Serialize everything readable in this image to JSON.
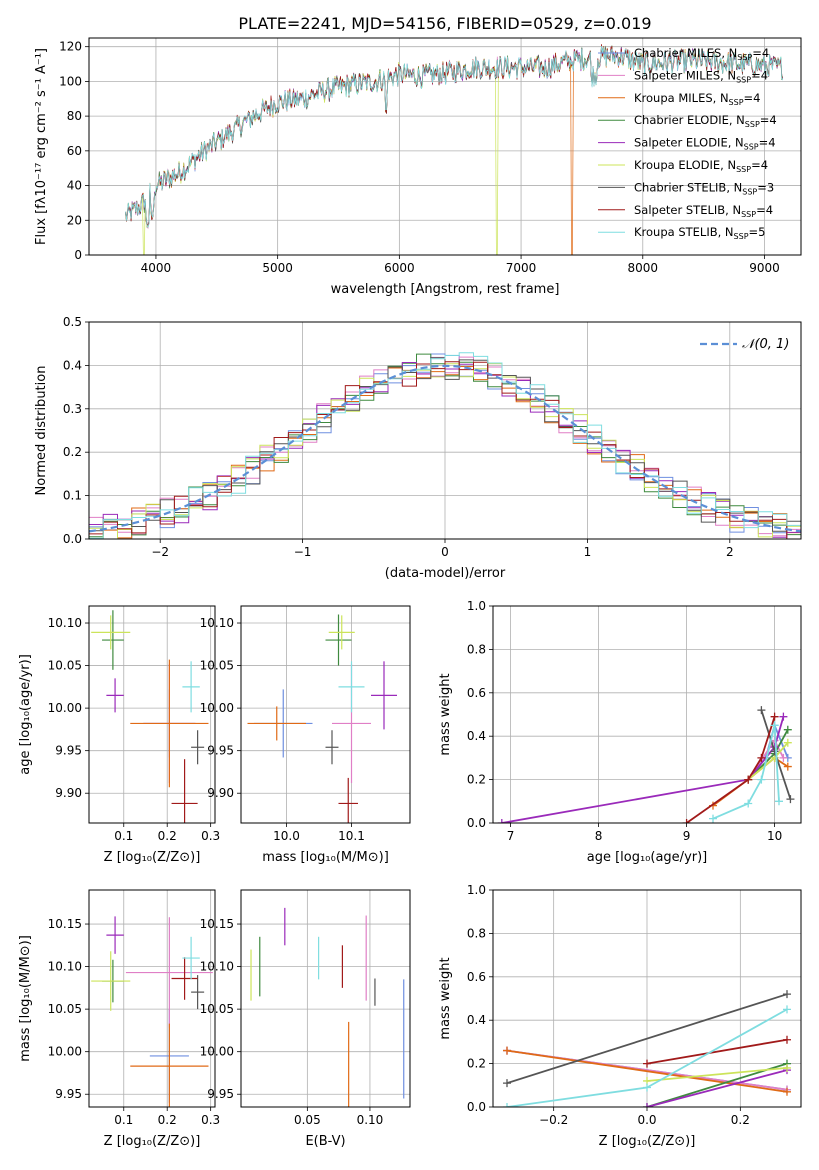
{
  "title": "PLATE=2241, MJD=54156, FIBERID=0529, z=0.019",
  "colors": {
    "Chabrier MILES": "#6f8fe0",
    "Salpeter MILES": "#e07fc6",
    "Kroupa MILES": "#e06a16",
    "Chabrier ELODIE": "#3f8a3f",
    "Salpeter ELODIE": "#9a2aba",
    "Kroupa ELODIE": "#cce45a",
    "Chabrier STELIB": "#555555",
    "Salpeter STELIB": "#a11a1a",
    "Kroupa STELIB": "#7fdde0"
  },
  "legend_spectrum": [
    {
      "model": "Chabrier MILES",
      "label": "Chabrier MILES, N",
      "sub": "SSP",
      "tail": "=4"
    },
    {
      "model": "Salpeter MILES",
      "label": "Salpeter MILES, N",
      "sub": "SSP",
      "tail": "=4"
    },
    {
      "model": "Kroupa MILES",
      "label": "Kroupa MILES, N",
      "sub": "SSP",
      "tail": "=4"
    },
    {
      "model": "Chabrier ELODIE",
      "label": "Chabrier ELODIE, N",
      "sub": "SSP",
      "tail": "=4"
    },
    {
      "model": "Salpeter ELODIE",
      "label": "Salpeter ELODIE, N",
      "sub": "SSP",
      "tail": "=4"
    },
    {
      "model": "Kroupa ELODIE",
      "label": "Kroupa ELODIE, N",
      "sub": "SSP",
      "tail": "=4"
    },
    {
      "model": "Chabrier STELIB",
      "label": "Chabrier STELIB, N",
      "sub": "SSP",
      "tail": "=3"
    },
    {
      "model": "Salpeter STELIB",
      "label": "Salpeter STELIB, N",
      "sub": "SSP",
      "tail": "=4"
    },
    {
      "model": "Kroupa STELIB",
      "label": "Kroupa STELIB, N",
      "sub": "SSP",
      "tail": "=5"
    }
  ],
  "chart_data": [
    {
      "id": "spectrum",
      "type": "line",
      "xlabel": "wavelength [Angstrom, rest frame]",
      "ylabel": "Flux [fλ10⁻¹⁷ erg cm⁻² s⁻¹ A⁻¹]",
      "xlim": [
        3450,
        9300
      ],
      "ylim": [
        0,
        125
      ],
      "xticks": [
        4000,
        5000,
        6000,
        7000,
        8000,
        9000
      ],
      "yticks": [
        0,
        20,
        40,
        60,
        80,
        100,
        120
      ],
      "continuum": {
        "wavelength": [
          3750,
          3900,
          4000,
          4200,
          4400,
          4600,
          4800,
          5000,
          5200,
          5400,
          5600,
          5800,
          6000,
          6200,
          6400,
          6600,
          6800,
          7000,
          7200,
          7400,
          7600,
          7800,
          8000,
          8200,
          8400,
          8600,
          8800,
          9000,
          9150
        ],
        "flux": [
          22,
          30,
          40,
          48,
          60,
          70,
          80,
          88,
          90,
          95,
          98,
          100,
          104,
          103,
          105,
          108,
          108,
          108,
          108,
          112,
          114,
          115,
          110,
          111,
          112,
          111,
          110,
          109,
          108
        ]
      },
      "drops": [
        {
          "model": "Kroupa ELODIE",
          "wavelength": 3900
        },
        {
          "model": "Kroupa ELODIE",
          "wavelength": 6800
        },
        {
          "model": "Kroupa MILES",
          "wavelength": 7420
        }
      ]
    },
    {
      "id": "residuals",
      "type": "histogram",
      "xlabel": "(data-model)/error",
      "ylabel": "Normed distribution",
      "xlim": [
        -2.5,
        2.5
      ],
      "ylim": [
        0,
        0.5
      ],
      "xticks": [
        -2,
        -1,
        0,
        1,
        2
      ],
      "yticks": [
        0.0,
        0.1,
        0.2,
        0.3,
        0.4,
        0.5
      ],
      "reference": {
        "label": "𝒩(0, 1)",
        "mean": 0,
        "sigma": 1
      },
      "bin_width": 0.1
    },
    {
      "id": "age-vs-Z",
      "type": "errorbar",
      "xlabel": "Z [log₁₀(Z/Z⊙)]",
      "ylabel": "age  [log₁₀(age/yr)]",
      "xlim": [
        0.02,
        0.31
      ],
      "ylim": [
        9.865,
        10.12
      ],
      "xticks": [
        0.1,
        0.2,
        0.3
      ],
      "yticks": [
        9.9,
        9.95,
        10.0,
        10.05,
        10.1
      ],
      "points": [
        {
          "model": "Chabrier MILES",
          "x": 0.205,
          "y": 9.982,
          "xerr": 0.06,
          "yerr": 0.04
        },
        {
          "model": "Salpeter MILES",
          "x": 0.205,
          "y": 9.982,
          "xerr": 0.06,
          "yerr": 0.07
        },
        {
          "model": "Kroupa MILES",
          "x": 0.205,
          "y": 9.982,
          "xerr": 0.09,
          "yerr": 0.075
        },
        {
          "model": "Chabrier ELODIE",
          "x": 0.075,
          "y": 10.08,
          "xerr": 0.025,
          "yerr": 0.035
        },
        {
          "model": "Salpeter ELODIE",
          "x": 0.08,
          "y": 10.015,
          "xerr": 0.02,
          "yerr": 0.02
        },
        {
          "model": "Kroupa ELODIE",
          "x": 0.07,
          "y": 10.089,
          "xerr": 0.045,
          "yerr": 0.02
        },
        {
          "model": "Chabrier STELIB",
          "x": 0.27,
          "y": 9.954,
          "xerr": 0.015,
          "yerr": 0.02
        },
        {
          "model": "Salpeter STELIB",
          "x": 0.24,
          "y": 9.888,
          "xerr": 0.03,
          "yerr": 0.052
        },
        {
          "model": "Kroupa STELIB",
          "x": 0.255,
          "y": 10.025,
          "xerr": 0.02,
          "yerr": 0.03
        }
      ]
    },
    {
      "id": "age-vs-mass",
      "type": "errorbar",
      "xlabel": "mass [log₁₀(M/M⊙)]",
      "ylabel": "",
      "xlim": [
        9.93,
        10.19
      ],
      "ylim": [
        9.865,
        10.12
      ],
      "xticks": [
        10.0,
        10.1
      ],
      "yticks": [
        9.9,
        9.95,
        10.0,
        10.05,
        10.1
      ],
      "points": [
        {
          "model": "Chabrier MILES",
          "x": 9.995,
          "y": 9.982,
          "xerr": 0.045,
          "yerr": 0.04
        },
        {
          "model": "Salpeter MILES",
          "x": 10.1,
          "y": 9.982,
          "xerr": 0.03,
          "yerr": 0.07
        },
        {
          "model": "Kroupa MILES",
          "x": 9.985,
          "y": 9.982,
          "xerr": 0.045,
          "yerr": 0.02
        },
        {
          "model": "Chabrier ELODIE",
          "x": 10.08,
          "y": 10.08,
          "xerr": 0.02,
          "yerr": 0.03
        },
        {
          "model": "Salpeter ELODIE",
          "x": 10.15,
          "y": 10.015,
          "xerr": 0.02,
          "yerr": 0.04
        },
        {
          "model": "Kroupa ELODIE",
          "x": 10.085,
          "y": 10.089,
          "xerr": 0.02,
          "yerr": 0.02
        },
        {
          "model": "Chabrier STELIB",
          "x": 10.07,
          "y": 9.954,
          "xerr": 0.01,
          "yerr": 0.02
        },
        {
          "model": "Salpeter STELIB",
          "x": 10.095,
          "y": 9.888,
          "xerr": 0.015,
          "yerr": 0.03
        },
        {
          "model": "Kroupa STELIB",
          "x": 10.1,
          "y": 10.025,
          "xerr": 0.02,
          "yerr": 0.03
        }
      ]
    },
    {
      "id": "weight-vs-age",
      "type": "line",
      "xlabel": "age  [log₁₀(age/yr)]",
      "ylabel": "mass weight",
      "xlim": [
        6.8,
        10.3
      ],
      "ylim": [
        0,
        1.0
      ],
      "xticks": [
        7,
        8,
        9,
        10
      ],
      "yticks": [
        0.0,
        0.2,
        0.4,
        0.6,
        0.8,
        1.0
      ],
      "series": [
        {
          "model": "Chabrier MILES",
          "x": [
            9.7,
            9.9,
            10.0,
            10.15
          ],
          "y": [
            0.2,
            0.3,
            0.45,
            0.3
          ]
        },
        {
          "model": "Salpeter MILES",
          "x": [
            9.7,
            10.0,
            10.1
          ],
          "y": [
            0.2,
            0.38,
            0.3
          ]
        },
        {
          "model": "Kroupa MILES",
          "x": [
            9.3,
            9.7,
            10.0,
            10.15
          ],
          "y": [
            0.08,
            0.2,
            0.3,
            0.26
          ]
        },
        {
          "model": "Chabrier ELODIE",
          "x": [
            9.7,
            10.0,
            10.15
          ],
          "y": [
            0.2,
            0.32,
            0.43
          ]
        },
        {
          "model": "Salpeter ELODIE",
          "x": [
            6.9,
            9.7,
            10.0,
            10.1
          ],
          "y": [
            0.0,
            0.2,
            0.35,
            0.49
          ]
        },
        {
          "model": "Kroupa ELODIE",
          "x": [
            9.7,
            10.0,
            10.15
          ],
          "y": [
            0.2,
            0.3,
            0.37
          ]
        },
        {
          "model": "Chabrier STELIB",
          "x": [
            9.85,
            10.0,
            10.18
          ],
          "y": [
            0.52,
            0.33,
            0.11
          ]
        },
        {
          "model": "Salpeter STELIB",
          "x": [
            9.0,
            9.7,
            9.85,
            10.0
          ],
          "y": [
            0.0,
            0.2,
            0.3,
            0.49
          ]
        },
        {
          "model": "Kroupa STELIB",
          "x": [
            9.3,
            9.7,
            9.85,
            10.0,
            10.05
          ],
          "y": [
            0.02,
            0.09,
            0.2,
            0.45,
            0.1
          ]
        }
      ]
    },
    {
      "id": "mass-vs-Z",
      "type": "errorbar",
      "xlabel": "Z [log₁₀(Z/Z⊙)]",
      "ylabel": "mass [log₁₀(M/M⊙)]",
      "xlim": [
        0.02,
        0.31
      ],
      "ylim": [
        9.935,
        10.19
      ],
      "xticks": [
        0.1,
        0.2,
        0.3
      ],
      "yticks": [
        9.95,
        10.0,
        10.05,
        10.1,
        10.15
      ],
      "points": [
        {
          "model": "Chabrier MILES",
          "x": 0.205,
          "y": 9.995,
          "xerr": 0.045,
          "yerr": 0.055
        },
        {
          "model": "Salpeter MILES",
          "x": 0.205,
          "y": 10.093,
          "xerr": 0.1,
          "yerr": 0.065
        },
        {
          "model": "Kroupa MILES",
          "x": 0.205,
          "y": 9.983,
          "xerr": 0.09,
          "yerr": 0.05
        },
        {
          "model": "Chabrier ELODIE",
          "x": 0.075,
          "y": 10.083,
          "xerr": 0.025,
          "yerr": 0.025
        },
        {
          "model": "Salpeter ELODIE",
          "x": 0.08,
          "y": 10.137,
          "xerr": 0.02,
          "yerr": 0.022
        },
        {
          "model": "Kroupa ELODIE",
          "x": 0.07,
          "y": 10.083,
          "xerr": 0.045,
          "yerr": 0.035
        },
        {
          "model": "Chabrier STELIB",
          "x": 0.27,
          "y": 10.07,
          "xerr": 0.015,
          "yerr": 0.02
        },
        {
          "model": "Salpeter STELIB",
          "x": 0.24,
          "y": 10.086,
          "xerr": 0.03,
          "yerr": 0.025
        },
        {
          "model": "Kroupa STELIB",
          "x": 0.255,
          "y": 10.11,
          "xerr": 0.02,
          "yerr": 0.025
        }
      ]
    },
    {
      "id": "mass-vs-EBV",
      "type": "errorbar",
      "xlabel": "E(B-V)",
      "ylabel": "",
      "xlim": [
        -0.003,
        0.132
      ],
      "ylim": [
        9.935,
        10.19
      ],
      "xticks": [
        0.05,
        0.1
      ],
      "yticks": [
        9.95,
        10.0,
        10.05,
        10.1,
        10.15
      ],
      "points": [
        {
          "model": "Chabrier MILES",
          "x": 0.127,
          "y": 10.015,
          "xerr": 0,
          "yerr": 0.07
        },
        {
          "model": "Salpeter MILES",
          "x": 0.097,
          "y": 10.11,
          "xerr": 0,
          "yerr": 0.05
        },
        {
          "model": "Kroupa MILES",
          "x": 0.083,
          "y": 9.985,
          "xerr": 0,
          "yerr": 0.05
        },
        {
          "model": "Chabrier ELODIE",
          "x": 0.012,
          "y": 10.1,
          "xerr": 0,
          "yerr": 0.035
        },
        {
          "model": "Salpeter ELODIE",
          "x": 0.032,
          "y": 10.147,
          "xerr": 0,
          "yerr": 0.022
        },
        {
          "model": "Kroupa ELODIE",
          "x": 0.005,
          "y": 10.09,
          "xerr": 0,
          "yerr": 0.03
        },
        {
          "model": "Chabrier STELIB",
          "x": 0.104,
          "y": 10.07,
          "xerr": 0,
          "yerr": 0.016
        },
        {
          "model": "Salpeter STELIB",
          "x": 0.078,
          "y": 10.1,
          "xerr": 0,
          "yerr": 0.025
        },
        {
          "model": "Kroupa STELIB",
          "x": 0.059,
          "y": 10.11,
          "xerr": 0,
          "yerr": 0.025
        }
      ]
    },
    {
      "id": "weight-vs-Z",
      "type": "line",
      "xlabel": "Z [log₁₀(Z/Z⊙)]",
      "ylabel": "mass weight",
      "xlim": [
        -0.33,
        0.33
      ],
      "ylim": [
        0,
        1.0
      ],
      "xticks": [
        -0.2,
        0.0,
        0.2
      ],
      "yticks": [
        0.0,
        0.2,
        0.4,
        0.6,
        0.8,
        1.0
      ],
      "series": [
        {
          "model": "Chabrier MILES",
          "x": [
            -0.3,
            0.3
          ],
          "y": [
            0.26,
            0.08
          ]
        },
        {
          "model": "Salpeter MILES",
          "x": [
            -0.3,
            0.3
          ],
          "y": [
            0.26,
            0.08
          ]
        },
        {
          "model": "Kroupa MILES",
          "x": [
            -0.3,
            0.3
          ],
          "y": [
            0.26,
            0.07
          ]
        },
        {
          "model": "Chabrier ELODIE",
          "x": [
            0.0,
            0.3
          ],
          "y": [
            0.0,
            0.2
          ]
        },
        {
          "model": "Salpeter ELODIE",
          "x": [
            0.0,
            0.3
          ],
          "y": [
            0.0,
            0.17
          ]
        },
        {
          "model": "Kroupa ELODIE",
          "x": [
            0.0,
            0.3
          ],
          "y": [
            0.12,
            0.18
          ]
        },
        {
          "model": "Chabrier STELIB",
          "x": [
            -0.3,
            0.3
          ],
          "y": [
            0.11,
            0.52
          ]
        },
        {
          "model": "Salpeter STELIB",
          "x": [
            0.0,
            0.3
          ],
          "y": [
            0.2,
            0.31
          ]
        },
        {
          "model": "Kroupa STELIB",
          "x": [
            -0.3,
            0.0,
            0.3
          ],
          "y": [
            0.0,
            0.09,
            0.45
          ]
        }
      ]
    }
  ]
}
